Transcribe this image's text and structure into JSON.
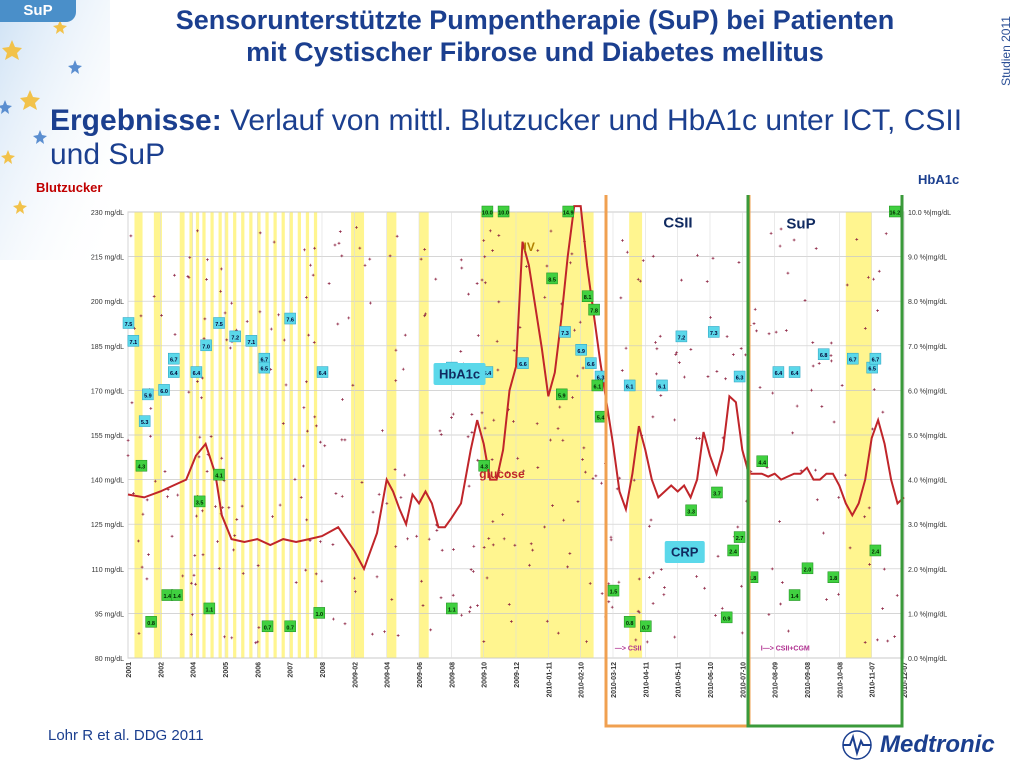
{
  "badge": "SuP",
  "title_line1": "Sensorunterstützte Pumpentherapie (SuP) bei Patienten",
  "title_line2": "mit Cystischer Fibrose und Diabetes mellitus",
  "side_label": "Studien 2011",
  "subtitle_bold": "Ergebnisse:",
  "subtitle_rest": " Verlauf von mittl. Blutzucker und HbA1c unter ICT, CSII und SuP",
  "citation": "Lohr R et al. DDG 2011",
  "logo_text": "Medtronic",
  "colors": {
    "title": "#1b3f8f",
    "glucose_line": "#c0252a",
    "yellow_band": "#fff26a",
    "csii_box": "#f0a050",
    "sup_box": "#3a9a3a",
    "hba1c_label": "#5bd8ea",
    "green_label": "#40d040"
  },
  "chart_data": {
    "type": "line",
    "title": "Verlauf von mittl. Blutzucker und HbA1c unter ICT, CSII und SuP",
    "ylabel_left": "Blutzucker",
    "ylabel_right": "HbA1c",
    "y_left": {
      "min": 80,
      "max": 230,
      "ticks": [
        "230 mg/dL",
        "215 mg/dL",
        "200 mg/dL",
        "185 mg/dL",
        "170 mg/dL",
        "155 mg/dL",
        "140 mg/dL",
        "125 mg/dL",
        "110 mg/dL",
        "95 mg/dL",
        "80 mg/dL"
      ]
    },
    "y_right": {
      "min": 0,
      "max": 10,
      "ticks": [
        "10.0 %|mg/dL",
        "9.0 %|mg/dL",
        "8.0 %|mg/dL",
        "7.0 %|mg/dL",
        "6.0 %|mg/dL",
        "5.0 %|mg/dL",
        "4.0 %|mg/dL",
        "3.0 %|mg/dL",
        "2.0 %|mg/dL",
        "1.0 %|mg/dL",
        "0.0 %|mg/dL"
      ]
    },
    "x_ticks": [
      "2001",
      "2002",
      "2004",
      "2005",
      "2006",
      "2007",
      "2008",
      "2009-02",
      "2009-04",
      "2009-06",
      "2009-08",
      "2009-10",
      "2009-12",
      "2010-01-11",
      "2010-02-10",
      "2010-03-12",
      "2010-04-11",
      "2010-05-11",
      "2010-06-10",
      "2010-07-10",
      "2010-08-09",
      "2010-09-08",
      "2010-10-08",
      "2010-11-07",
      "2010-12-07"
    ],
    "glucose_series": {
      "name": "glucose",
      "points": [
        [
          0,
          135
        ],
        [
          0.5,
          134
        ],
        [
          1,
          136
        ],
        [
          1.4,
          138
        ],
        [
          1.8,
          140
        ],
        [
          2.1,
          148
        ],
        [
          2.4,
          152
        ],
        [
          2.7,
          142
        ],
        [
          2.9,
          128
        ],
        [
          3.2,
          120
        ],
        [
          3.6,
          119
        ],
        [
          4,
          120
        ],
        [
          4.4,
          118
        ],
        [
          4.8,
          120
        ],
        [
          5.2,
          119
        ],
        [
          5.6,
          120
        ],
        [
          6,
          121
        ],
        [
          6.5,
          124
        ],
        [
          7,
          116
        ],
        [
          7.3,
          110
        ],
        [
          7.7,
          122
        ],
        [
          8,
          140
        ],
        [
          8.2,
          136
        ],
        [
          8.4,
          130
        ],
        [
          8.6,
          125
        ],
        [
          8.8,
          135
        ],
        [
          9,
          132
        ],
        [
          9.2,
          136
        ],
        [
          9.4,
          132
        ],
        [
          9.6,
          124
        ],
        [
          9.8,
          124
        ],
        [
          10,
          127
        ],
        [
          10.3,
          132
        ],
        [
          10.6,
          150
        ],
        [
          10.8,
          160
        ],
        [
          11,
          152
        ],
        [
          11.2,
          140
        ],
        [
          11.4,
          140
        ],
        [
          11.6,
          150
        ],
        [
          11.8,
          170
        ],
        [
          12,
          178
        ],
        [
          12.2,
          220
        ],
        [
          12.4,
          212
        ],
        [
          12.6,
          198
        ],
        [
          12.8,
          184
        ],
        [
          13,
          168
        ],
        [
          13.2,
          176
        ],
        [
          13.4,
          194
        ],
        [
          13.6,
          215
        ],
        [
          13.8,
          238
        ],
        [
          14,
          232
        ],
        [
          14.2,
          212
        ],
        [
          14.4,
          196
        ],
        [
          14.6,
          180
        ],
        [
          14.8,
          166
        ],
        [
          15,
          152
        ],
        [
          15.2,
          136
        ],
        [
          15.4,
          130
        ],
        [
          15.6,
          142
        ],
        [
          15.8,
          158
        ],
        [
          16,
          150
        ],
        [
          16.2,
          140
        ],
        [
          16.4,
          134
        ],
        [
          16.6,
          136
        ],
        [
          16.8,
          138
        ],
        [
          17,
          136
        ],
        [
          17.2,
          138
        ],
        [
          17.4,
          134
        ],
        [
          17.6,
          140
        ],
        [
          17.8,
          156
        ],
        [
          18,
          148
        ],
        [
          18.2,
          142
        ],
        [
          18.4,
          150
        ],
        [
          18.6,
          168
        ],
        [
          18.8,
          166
        ],
        [
          19,
          150
        ],
        [
          19.2,
          142
        ],
        [
          19.4,
          142
        ],
        [
          19.6,
          142
        ],
        [
          19.8,
          141
        ],
        [
          20,
          142
        ],
        [
          20.2,
          140
        ],
        [
          20.4,
          141
        ],
        [
          20.6,
          142
        ],
        [
          20.8,
          142
        ],
        [
          21,
          144
        ],
        [
          21.2,
          140
        ],
        [
          21.4,
          140
        ],
        [
          21.6,
          142
        ],
        [
          21.8,
          142
        ],
        [
          22,
          138
        ],
        [
          22.2,
          132
        ],
        [
          22.4,
          128
        ],
        [
          22.6,
          132
        ],
        [
          22.8,
          140
        ],
        [
          23,
          154
        ],
        [
          23.2,
          160
        ],
        [
          23.4,
          152
        ],
        [
          23.6,
          140
        ],
        [
          23.8,
          132
        ],
        [
          24,
          134
        ]
      ]
    },
    "hba1c_labels": [
      {
        "x": 0,
        "v": "7.5"
      },
      {
        "x": 0.15,
        "v": "7.1"
      },
      {
        "x": 0.5,
        "v": "5.3"
      },
      {
        "x": 0.6,
        "v": "5.9"
      },
      {
        "x": 1.1,
        "v": "6.0"
      },
      {
        "x": 1.4,
        "v": "6.7"
      },
      {
        "x": 1.4,
        "v": "6.4"
      },
      {
        "x": 2.1,
        "v": "6.4"
      },
      {
        "x": 2.4,
        "v": "7.0"
      },
      {
        "x": 2.8,
        "v": "7.5"
      },
      {
        "x": 3.3,
        "v": "7.2"
      },
      {
        "x": 3.8,
        "v": "7.1"
      },
      {
        "x": 4.2,
        "v": "6.7"
      },
      {
        "x": 4.2,
        "v": "6.5"
      },
      {
        "x": 5,
        "v": "7.6"
      },
      {
        "x": 6,
        "v": "6.4"
      },
      {
        "x": 10,
        "v": "6.5"
      },
      {
        "x": 11.1,
        "v": "6.4"
      },
      {
        "x": 12.2,
        "v": "6.6"
      },
      {
        "x": 13.5,
        "v": "7.3"
      },
      {
        "x": 14,
        "v": "6.9"
      },
      {
        "x": 14.3,
        "v": "6.6"
      },
      {
        "x": 14.6,
        "v": "6.3"
      },
      {
        "x": 15.5,
        "v": "6.1"
      },
      {
        "x": 16.5,
        "v": "6.1"
      },
      {
        "x": 17.1,
        "v": "7.2"
      },
      {
        "x": 18.1,
        "v": "7.3"
      },
      {
        "x": 18.9,
        "v": "6.3"
      },
      {
        "x": 20.1,
        "v": "6.4"
      },
      {
        "x": 20.6,
        "v": "6.4"
      },
      {
        "x": 21.5,
        "v": "6.8"
      },
      {
        "x": 22.4,
        "v": "6.7"
      },
      {
        "x": 23,
        "v": "6.5"
      },
      {
        "x": 23.1,
        "v": "6.7"
      }
    ],
    "green_labels": [
      {
        "x": 0.4,
        "v": "4.3"
      },
      {
        "x": 0.7,
        "v": "0.8"
      },
      {
        "x": 1.2,
        "v": "1.4"
      },
      {
        "x": 1.5,
        "v": "1.4"
      },
      {
        "x": 2.2,
        "v": "3.5"
      },
      {
        "x": 2.5,
        "v": "1.1"
      },
      {
        "x": 2.8,
        "v": "4.1"
      },
      {
        "x": 4.3,
        "v": "0.7"
      },
      {
        "x": 5,
        "v": "0.7"
      },
      {
        "x": 5.9,
        "v": "1.0"
      },
      {
        "x": 10,
        "v": "1.1"
      },
      {
        "x": 11,
        "v": "4.3"
      },
      {
        "x": 11.1,
        "v": "10.0"
      },
      {
        "x": 11.6,
        "v": "10.0"
      },
      {
        "x": 13.1,
        "v": "8.5"
      },
      {
        "x": 13.4,
        "v": "5.9"
      },
      {
        "x": 13.6,
        "v": "14.9"
      },
      {
        "x": 14.2,
        "v": "8.1"
      },
      {
        "x": 14.4,
        "v": "7.8"
      },
      {
        "x": 14.5,
        "v": "6.1"
      },
      {
        "x": 14.6,
        "v": "5.4"
      },
      {
        "x": 15,
        "v": "1.5"
      },
      {
        "x": 15.5,
        "v": "0.8"
      },
      {
        "x": 16,
        "v": "0.7"
      },
      {
        "x": 17.4,
        "v": "3.3"
      },
      {
        "x": 18.2,
        "v": "3.7"
      },
      {
        "x": 18.5,
        "v": "0.9"
      },
      {
        "x": 18.7,
        "v": "2.4"
      },
      {
        "x": 18.9,
        "v": "2.7"
      },
      {
        "x": 19.3,
        "v": "1.8"
      },
      {
        "x": 19.6,
        "v": "4.4"
      },
      {
        "x": 20.6,
        "v": "1.4"
      },
      {
        "x": 21,
        "v": "2.0"
      },
      {
        "x": 21.8,
        "v": "1.8"
      },
      {
        "x": 23.1,
        "v": "2.4"
      },
      {
        "x": 23.7,
        "v": "16.2"
      }
    ],
    "annotations": {
      "hba1c": "HbA1c",
      "glucose": "glucose",
      "iv": "IV",
      "crp": "CRP",
      "csii": "CSII",
      "sup": "SuP",
      "to_csii": "—> CSII",
      "to_csii_cgm": "I—> CSII+CGM"
    },
    "phases": [
      {
        "name": "CSII",
        "x_start": 14.8,
        "x_end": 19.2
      },
      {
        "name": "SuP",
        "x_start": 19.3,
        "x_end": 24.3
      }
    ]
  }
}
